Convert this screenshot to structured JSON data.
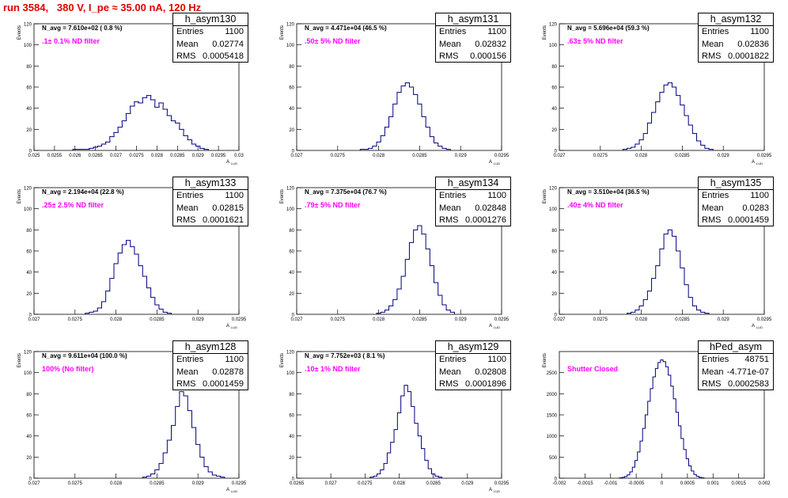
{
  "title": "run 3584,   380 V, I_pe ≈ 35.00 nA, 120 Hz",
  "stats_labels": {
    "entries": "Entries",
    "mean": "Mean",
    "rms": "RMS"
  },
  "line_color": "#000080",
  "text_colors": {
    "title": "#e00000",
    "filter": "#ff00ff"
  },
  "chart_data": [
    {
      "type": "histogram",
      "name": "h_asym130",
      "navg": "N_avg = 7.610e+02 ( 0.8 %)",
      "filter": ".1± 0.1% ND filter",
      "stats": {
        "entries": "1100",
        "mean": "0.02774",
        "rms": "0.0005418"
      },
      "ylabel": "Events",
      "xlabel": "A",
      "xlabel_sub": "LUD",
      "xlim": [
        0.025,
        0.03
      ],
      "ylim": [
        0,
        120
      ],
      "xticks": [
        "0.025",
        "0.0255",
        "0.026",
        "0.0265",
        "0.027",
        "0.0275",
        "0.028",
        "0.0285",
        "0.029",
        "0.0295",
        "0.03"
      ],
      "yticks": [
        "0",
        "20",
        "40",
        "60",
        "80",
        "100",
        "120"
      ],
      "x": [
        0.026,
        0.0263,
        0.0264,
        0.0265,
        0.0266,
        0.0267,
        0.0268,
        0.0269,
        0.027,
        0.0271,
        0.0272,
        0.0273,
        0.0274,
        0.0275,
        0.0276,
        0.0277,
        0.0278,
        0.0279,
        0.028,
        0.0281,
        0.0282,
        0.0283,
        0.0284,
        0.0285,
        0.0286,
        0.0287,
        0.0288,
        0.0289,
        0.029,
        0.0291,
        0.0292
      ],
      "y": [
        1,
        1,
        2,
        3,
        4,
        6,
        8,
        13,
        17,
        22,
        28,
        35,
        42,
        46,
        45,
        50,
        52,
        48,
        41,
        45,
        39,
        33,
        28,
        26,
        20,
        14,
        10,
        6,
        4,
        2,
        1
      ]
    },
    {
      "type": "histogram",
      "name": "h_asym131",
      "navg": "N_avg = 4.471e+04 (46.5 %)",
      "filter": ".50± 5% ND filter",
      "stats": {
        "entries": "1100",
        "mean": "0.02832",
        "rms": "0.000156"
      },
      "ylabel": "Events",
      "xlabel": "A",
      "xlabel_sub": "LUD",
      "xlim": [
        0.027,
        0.0295
      ],
      "ylim": [
        0,
        120
      ],
      "xticks": [
        "0.027",
        "0.0275",
        "0.028",
        "0.0285",
        "0.029",
        "0.0295"
      ],
      "yticks": [
        "0",
        "20",
        "40",
        "60",
        "80",
        "100",
        "120"
      ],
      "x": [
        0.0278,
        0.02785,
        0.0279,
        0.02795,
        0.028,
        0.02805,
        0.0281,
        0.02815,
        0.0282,
        0.02825,
        0.0283,
        0.02835,
        0.0284,
        0.02845,
        0.0285,
        0.02855,
        0.0286,
        0.02865,
        0.0287,
        0.02875,
        0.0288,
        0.02885
      ],
      "y": [
        1,
        1,
        2,
        4,
        8,
        14,
        22,
        32,
        44,
        55,
        61,
        64,
        60,
        53,
        44,
        32,
        22,
        13,
        7,
        4,
        2,
        1
      ]
    },
    {
      "type": "histogram",
      "name": "h_asym132",
      "navg": "N_avg = 5.696e+04 (59.3 %)",
      "filter": ".63± 5% ND filter",
      "stats": {
        "entries": "1100",
        "mean": "0.02836",
        "rms": "0.0001822"
      },
      "ylabel": "Events",
      "xlabel": "A",
      "xlabel_sub": "LUD",
      "xlim": [
        0.027,
        0.0295
      ],
      "ylim": [
        0,
        120
      ],
      "xticks": [
        "0.027",
        "0.0275",
        "0.028",
        "0.0285",
        "0.029",
        "0.0295"
      ],
      "yticks": [
        "0",
        "20",
        "40",
        "60",
        "80",
        "100",
        "120"
      ],
      "x": [
        0.0278,
        0.02785,
        0.0279,
        0.02795,
        0.028,
        0.02805,
        0.0281,
        0.02815,
        0.0282,
        0.02825,
        0.0283,
        0.02835,
        0.0284,
        0.02845,
        0.0285,
        0.02855,
        0.0286,
        0.02865,
        0.0287,
        0.02875,
        0.0288,
        0.02885
      ],
      "y": [
        1,
        2,
        3,
        6,
        10,
        16,
        26,
        36,
        46,
        55,
        62,
        64,
        60,
        52,
        43,
        33,
        24,
        16,
        9,
        5,
        2,
        1
      ]
    },
    {
      "type": "histogram",
      "name": "h_asym133",
      "navg": "N_avg = 2.194e+04 (22.8 %)",
      "filter": ".25± 2.5% ND filter",
      "stats": {
        "entries": "1100",
        "mean": "0.02815",
        "rms": "0.0001621"
      },
      "ylabel": "Events",
      "xlabel": "A",
      "xlabel_sub": "LUD",
      "xlim": [
        0.027,
        0.0295
      ],
      "ylim": [
        0,
        120
      ],
      "xticks": [
        "0.027",
        "0.0275",
        "0.028",
        "0.0285",
        "0.029",
        "0.0295"
      ],
      "yticks": [
        "0",
        "20",
        "40",
        "60",
        "80",
        "100",
        "120"
      ],
      "x": [
        0.02765,
        0.0277,
        0.02775,
        0.0278,
        0.02785,
        0.0279,
        0.02795,
        0.028,
        0.02805,
        0.0281,
        0.02815,
        0.0282,
        0.02825,
        0.0283,
        0.02835,
        0.0284,
        0.02845,
        0.0285,
        0.02855,
        0.0286,
        0.02865
      ],
      "y": [
        1,
        2,
        3,
        6,
        12,
        22,
        34,
        48,
        58,
        66,
        70,
        64,
        57,
        46,
        36,
        25,
        16,
        9,
        5,
        2,
        1
      ]
    },
    {
      "type": "histogram",
      "name": "h_asym134",
      "navg": "N_avg = 7.375e+04 (76.7 %)",
      "filter": ".79± 5% ND filter",
      "stats": {
        "entries": "1100",
        "mean": "0.02848",
        "rms": "0.0001276"
      },
      "ylabel": "Events",
      "xlabel": "A",
      "xlabel_sub": "LUD",
      "xlim": [
        0.027,
        0.0295
      ],
      "ylim": [
        0,
        120
      ],
      "xticks": [
        "0.027",
        "0.0275",
        "0.028",
        "0.0285",
        "0.029",
        "0.0295"
      ],
      "yticks": [
        "0",
        "20",
        "40",
        "60",
        "80",
        "100",
        "120"
      ],
      "x": [
        0.028,
        0.02805,
        0.0281,
        0.02815,
        0.0282,
        0.02825,
        0.0283,
        0.02835,
        0.0284,
        0.02845,
        0.0285,
        0.02855,
        0.0286,
        0.02865,
        0.0287,
        0.02875,
        0.0288,
        0.02885,
        0.0289
      ],
      "y": [
        1,
        2,
        4,
        8,
        14,
        24,
        36,
        52,
        68,
        80,
        84,
        76,
        62,
        46,
        30,
        18,
        9,
        4,
        2
      ]
    },
    {
      "type": "histogram",
      "name": "h_asym135",
      "navg": "N_avg = 3.510e+04 (36.5 %)",
      "filter": ".40± 4% ND filter",
      "stats": {
        "entries": "1100",
        "mean": "0.0283",
        "rms": "0.0001459"
      },
      "ylabel": "Events",
      "xlabel": "A",
      "xlabel_sub": "LUD",
      "xlim": [
        0.027,
        0.0295
      ],
      "ylim": [
        0,
        120
      ],
      "xticks": [
        "0.027",
        "0.0275",
        "0.028",
        "0.0285",
        "0.029",
        "0.0295"
      ],
      "yticks": [
        "0",
        "20",
        "40",
        "60",
        "80",
        "100",
        "120"
      ],
      "x": [
        0.02785,
        0.0279,
        0.02795,
        0.028,
        0.02805,
        0.0281,
        0.02815,
        0.0282,
        0.02825,
        0.0283,
        0.02835,
        0.0284,
        0.02845,
        0.0285,
        0.02855,
        0.0286,
        0.02865,
        0.0287,
        0.02875,
        0.0288
      ],
      "y": [
        1,
        2,
        4,
        8,
        14,
        22,
        34,
        46,
        62,
        76,
        80,
        74,
        60,
        44,
        28,
        16,
        8,
        4,
        2,
        1
      ]
    },
    {
      "type": "histogram",
      "name": "h_asym128",
      "navg": "N_avg = 9.611e+04 (100.0 %)",
      "filter": "100% (No filter)",
      "stats": {
        "entries": "1100",
        "mean": "0.02878",
        "rms": "0.0001459"
      },
      "ylabel": "Events",
      "xlabel": "A",
      "xlabel_sub": "LUD",
      "xlim": [
        0.027,
        0.0295
      ],
      "ylim": [
        0,
        120
      ],
      "xticks": [
        "0.027",
        "0.0275",
        "0.028",
        "0.0285",
        "0.029",
        "0.0295"
      ],
      "yticks": [
        "0",
        "20",
        "40",
        "60",
        "80",
        "100",
        "120"
      ],
      "x": [
        0.02835,
        0.0284,
        0.02845,
        0.0285,
        0.02855,
        0.0286,
        0.02865,
        0.0287,
        0.02875,
        0.0288,
        0.02885,
        0.0289,
        0.02895,
        0.029,
        0.02905,
        0.0291,
        0.02915,
        0.0292,
        0.02925,
        0.0293
      ],
      "y": [
        1,
        2,
        4,
        8,
        14,
        24,
        36,
        50,
        68,
        82,
        78,
        64,
        48,
        32,
        20,
        11,
        6,
        3,
        2,
        1
      ]
    },
    {
      "type": "histogram",
      "name": "h_asym129",
      "navg": "N_avg = 7.752e+03 ( 8.1 %)",
      "filter": ".10± 1% ND filter",
      "stats": {
        "entries": "1100",
        "mean": "0.02808",
        "rms": "0.0001896"
      },
      "ylabel": "Events",
      "xlabel": "A",
      "xlabel_sub": "LUD",
      "xlim": [
        0.0265,
        0.0295
      ],
      "ylim": [
        0,
        120
      ],
      "xticks": [
        "0.0265",
        "0.027",
        "0.0275",
        "0.028",
        "0.0285",
        "0.029",
        "0.0295"
      ],
      "yticks": [
        "0",
        "20",
        "40",
        "60",
        "80",
        "100",
        "120"
      ],
      "x": [
        0.0276,
        0.02765,
        0.0277,
        0.02775,
        0.0278,
        0.02785,
        0.0279,
        0.02795,
        0.028,
        0.02805,
        0.0281,
        0.02815,
        0.0282,
        0.02825,
        0.0283,
        0.02835,
        0.0284,
        0.02845,
        0.0285,
        0.02855,
        0.0286
      ],
      "y": [
        1,
        2,
        4,
        8,
        14,
        24,
        34,
        46,
        62,
        78,
        88,
        82,
        68,
        52,
        40,
        28,
        17,
        9,
        4,
        2,
        1
      ]
    },
    {
      "type": "histogram",
      "name": "hPed_asym",
      "navg": "",
      "filter": "Shutter Closed",
      "stats": {
        "entries": "48751",
        "mean": "-4.771e-07",
        "rms": "0.0002583"
      },
      "ylabel": "Events",
      "xlabel": "",
      "xlabel_sub": "",
      "xlim": [
        -0.002,
        0.002
      ],
      "ylim": [
        0,
        3000
      ],
      "xticks": [
        "-0.002",
        "-0.0015",
        "-0.001",
        "-0.0005",
        "0",
        "0.0005",
        "0.001",
        "0.0015",
        "0.002"
      ],
      "yticks": [
        "0",
        "500",
        "1000",
        "1500",
        "2000",
        "2500"
      ],
      "x": [
        -0.0008,
        -0.00075,
        -0.0007,
        -0.00065,
        -0.0006,
        -0.00055,
        -0.0005,
        -0.00045,
        -0.0004,
        -0.00035,
        -0.0003,
        -0.00025,
        -0.0002,
        -0.00015,
        -0.0001,
        -5e-05,
        0.0,
        5e-05,
        0.0001,
        0.00015,
        0.0002,
        0.00025,
        0.0003,
        0.00035,
        0.0004,
        0.00045,
        0.0005,
        0.00055,
        0.0006,
        0.00065,
        0.0007,
        0.00075,
        0.0008
      ],
      "y": [
        10,
        20,
        40,
        80,
        150,
        260,
        420,
        620,
        880,
        1180,
        1500,
        1820,
        2120,
        2400,
        2600,
        2740,
        2800,
        2760,
        2640,
        2440,
        2180,
        1880,
        1560,
        1240,
        940,
        680,
        460,
        290,
        170,
        90,
        45,
        20,
        10
      ]
    }
  ]
}
